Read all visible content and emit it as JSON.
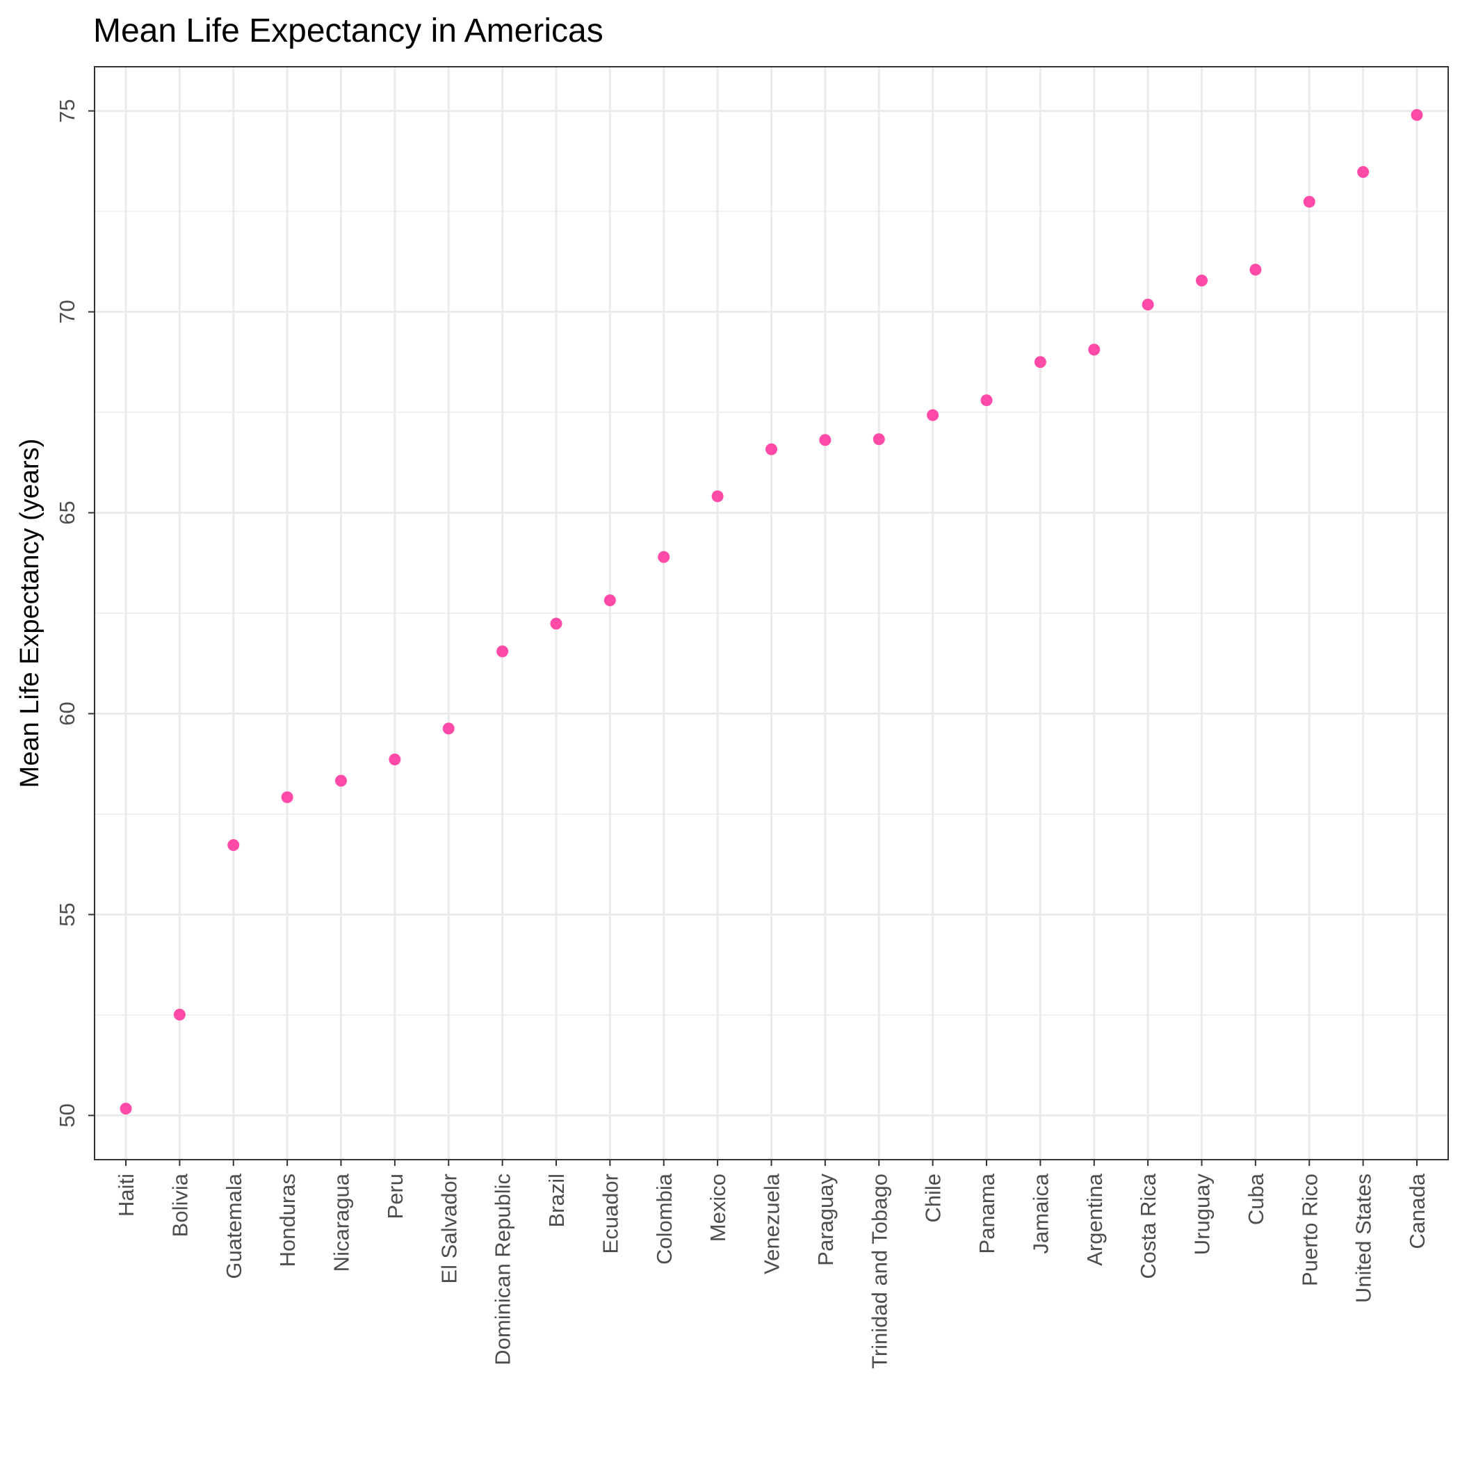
{
  "chart_data": {
    "type": "scatter",
    "title": "Mean Life Expectancy in Americas",
    "xlabel": "",
    "ylabel": "Mean Life Expectancy (years)",
    "ylim": [
      48.9,
      76.1
    ],
    "y_ticks": [
      50,
      55,
      60,
      65,
      70,
      75
    ],
    "grid": true,
    "point_color": "#ff4aa8",
    "categories": [
      "Haiti",
      "Bolivia",
      "Guatemala",
      "Honduras",
      "Nicaragua",
      "Peru",
      "El Salvador",
      "Dominican Republic",
      "Brazil",
      "Ecuador",
      "Colombia",
      "Mexico",
      "Venezuela",
      "Paraguay",
      "Trinidad and Tobago",
      "Chile",
      "Panama",
      "Jamaica",
      "Argentina",
      "Costa Rica",
      "Uruguay",
      "Cuba",
      "Puerto Rico",
      "United States",
      "Canada"
    ],
    "values": [
      50.17,
      52.51,
      56.73,
      57.92,
      58.33,
      58.86,
      59.63,
      61.55,
      62.24,
      62.82,
      63.9,
      65.41,
      66.58,
      66.81,
      66.83,
      67.43,
      67.8,
      68.75,
      69.06,
      70.18,
      70.78,
      71.05,
      72.74,
      73.48,
      74.9
    ]
  }
}
